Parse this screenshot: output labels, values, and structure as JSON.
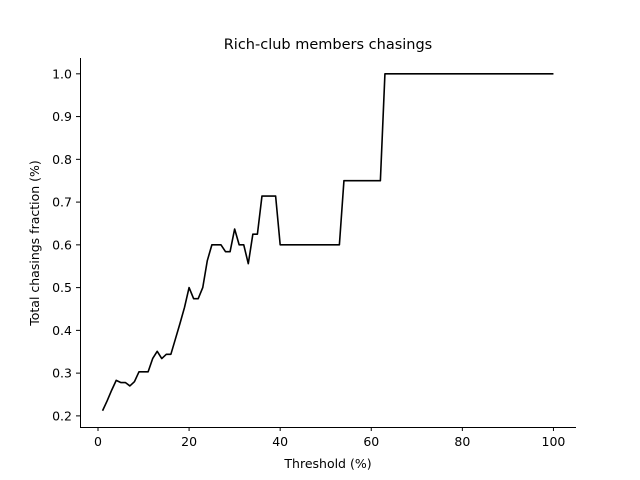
{
  "chart_data": {
    "type": "line",
    "title": "Rich-club members chasings",
    "xlabel": "Threshold (%)",
    "ylabel": "Total chasings fraction (%)",
    "xlim": [
      -3.95,
      104.95
    ],
    "ylim": [
      0.174,
      1.037
    ],
    "xticks": [
      0,
      20,
      40,
      60,
      80,
      100
    ],
    "yticks": [
      0.2,
      0.3,
      0.4,
      0.5,
      0.6,
      0.7,
      0.8,
      0.9,
      1.0
    ],
    "xtick_labels": [
      "0",
      "20",
      "40",
      "60",
      "80",
      "100"
    ],
    "ytick_labels": [
      "0.2",
      "0.3",
      "0.4",
      "0.5",
      "0.6",
      "0.7",
      "0.8",
      "0.9",
      "1.0"
    ],
    "grid": false,
    "line_color": "#000000",
    "series": [
      {
        "x": [
          1,
          2,
          3,
          4,
          5,
          6,
          7,
          8,
          9,
          10,
          11,
          12,
          13,
          14,
          15,
          16,
          17,
          18,
          19,
          20,
          21,
          22,
          23,
          24,
          25,
          26,
          27,
          28,
          29,
          30,
          31,
          32,
          33,
          34,
          35,
          36,
          37,
          38,
          39,
          40,
          41,
          42,
          43,
          44,
          45,
          46,
          47,
          48,
          49,
          50,
          51,
          52,
          53,
          54,
          55,
          56,
          57,
          58,
          59,
          60,
          61,
          62,
          63,
          64,
          65,
          66,
          67,
          68,
          69,
          70,
          71,
          72,
          73,
          74,
          75,
          76,
          77,
          78,
          79,
          80,
          81,
          82,
          83,
          84,
          85,
          86,
          87,
          88,
          89,
          90,
          91,
          92,
          93,
          94,
          95,
          96,
          97,
          98,
          99,
          100
        ],
        "values": [
          0.212,
          0.235,
          0.26,
          0.283,
          0.278,
          0.278,
          0.27,
          0.28,
          0.303,
          0.303,
          0.303,
          0.334,
          0.351,
          0.334,
          0.344,
          0.344,
          0.38,
          0.416,
          0.454,
          0.5,
          0.474,
          0.474,
          0.5,
          0.563,
          0.6,
          0.6,
          0.6,
          0.584,
          0.584,
          0.637,
          0.6,
          0.6,
          0.556,
          0.625,
          0.625,
          0.714,
          0.714,
          0.714,
          0.714,
          0.6,
          0.6,
          0.6,
          0.6,
          0.6,
          0.6,
          0.6,
          0.6,
          0.6,
          0.6,
          0.6,
          0.6,
          0.6,
          0.6,
          0.75,
          0.75,
          0.75,
          0.75,
          0.75,
          0.75,
          0.75,
          0.75,
          0.75,
          1.0,
          1.0,
          1.0,
          1.0,
          1.0,
          1.0,
          1.0,
          1.0,
          1.0,
          1.0,
          1.0,
          1.0,
          1.0,
          1.0,
          1.0,
          1.0,
          1.0,
          1.0,
          1.0,
          1.0,
          1.0,
          1.0,
          1.0,
          1.0,
          1.0,
          1.0,
          1.0,
          1.0,
          1.0,
          1.0,
          1.0,
          1.0,
          1.0,
          1.0,
          1.0,
          1.0,
          1.0,
          1.0
        ]
      }
    ]
  }
}
